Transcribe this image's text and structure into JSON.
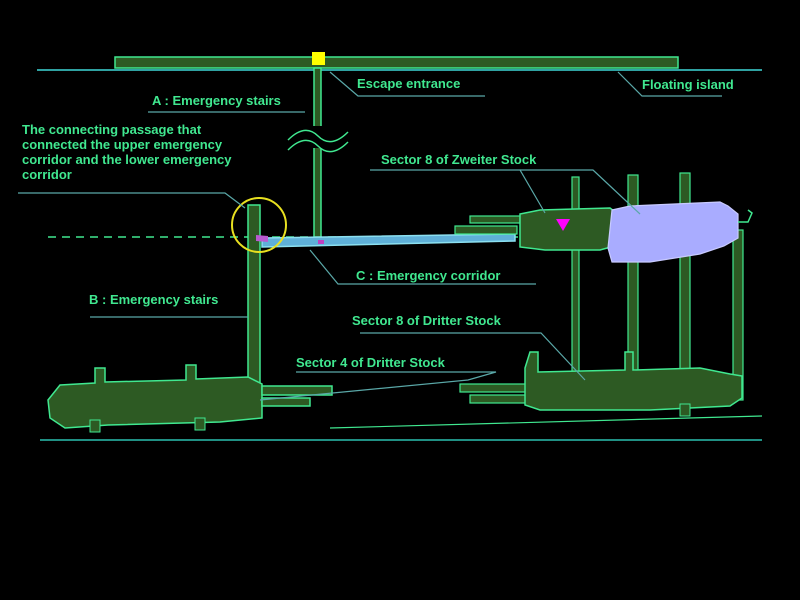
{
  "labels": {
    "escape_entrance": "Escape entrance",
    "floating_island": "Floating island",
    "a_stairs": "A : Emergency stairs",
    "connecting_passage": "The connecting passage that connected the upper emergency corridor and the lower emergency corridor",
    "sector8_zweiter": "Sector 8 of Zweiter Stock",
    "c_corridor": "C : Emergency corridor",
    "b_stairs": "B : Emergency stairs",
    "sector8_dritter": "Sector 8 of Dritter Stock",
    "sector4_dritter": "Sector 4 of Dritter Stock"
  },
  "colors": {
    "background": "#000000",
    "label_text": "#40e890",
    "outline": "#40e890",
    "structure_fill": "#2d5a23",
    "zweiter_block_fill": "#a9acff",
    "guide_line": "#5aa8a8",
    "corridor": "#8ce0f0",
    "entrance_marker": "#ffff00",
    "position_marker": "#ff00ff",
    "highlight_circle": "#e8e020"
  },
  "icons": {
    "entrance_marker": "yellow-square-icon",
    "position_marker": "magenta-triangle-icon",
    "highlight": "circle-highlight-icon",
    "break_symbol": "wavy-break-icon"
  }
}
